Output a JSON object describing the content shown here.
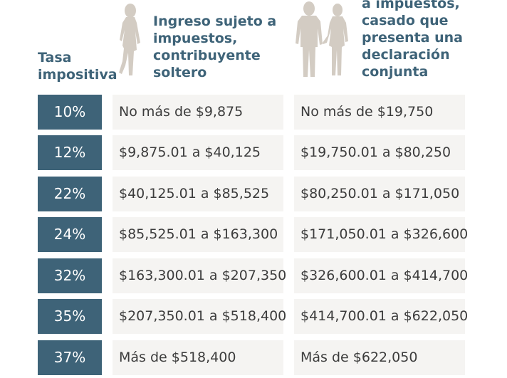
{
  "header": {
    "rate_lines": [
      "Tasa",
      "impositiva"
    ],
    "single_lines": [
      "Ingreso sujeto a",
      "impuestos,",
      "contribuyente",
      "soltero"
    ],
    "couple_lines": [
      "a impuestos,",
      "casado que",
      "presenta una",
      "declaración",
      "conjunta"
    ]
  },
  "colors": {
    "accent": "#3e6378",
    "cell_bg": "#f5f4f2",
    "figure": "#d3ccc3"
  },
  "icons": {
    "single": "single-person-icon",
    "couple": "couple-holding-hands-icon"
  },
  "rows": [
    {
      "rate": "10%",
      "single": "No más de $9,875",
      "couple": "No más de $19,750"
    },
    {
      "rate": "12%",
      "single": "$9,875.01 a $40,125",
      "couple": "$19,750.01 a $80,250"
    },
    {
      "rate": "22%",
      "single": "$40,125.01 a $85,525",
      "couple": "$80,250.01 a $171,050"
    },
    {
      "rate": "24%",
      "single": "$85,525.01 a $163,300",
      "couple": "$171,050.01 a $326,600"
    },
    {
      "rate": "32%",
      "single": "$163,300.01 a $207,350",
      "couple": "$326,600.01 a $414,700"
    },
    {
      "rate": "35%",
      "single": "$207,350.01 a $518,400",
      "couple": "$414,700.01 a $622,050"
    },
    {
      "rate": "37%",
      "single": "Más de $518,400",
      "couple": "Más de $622,050"
    }
  ]
}
